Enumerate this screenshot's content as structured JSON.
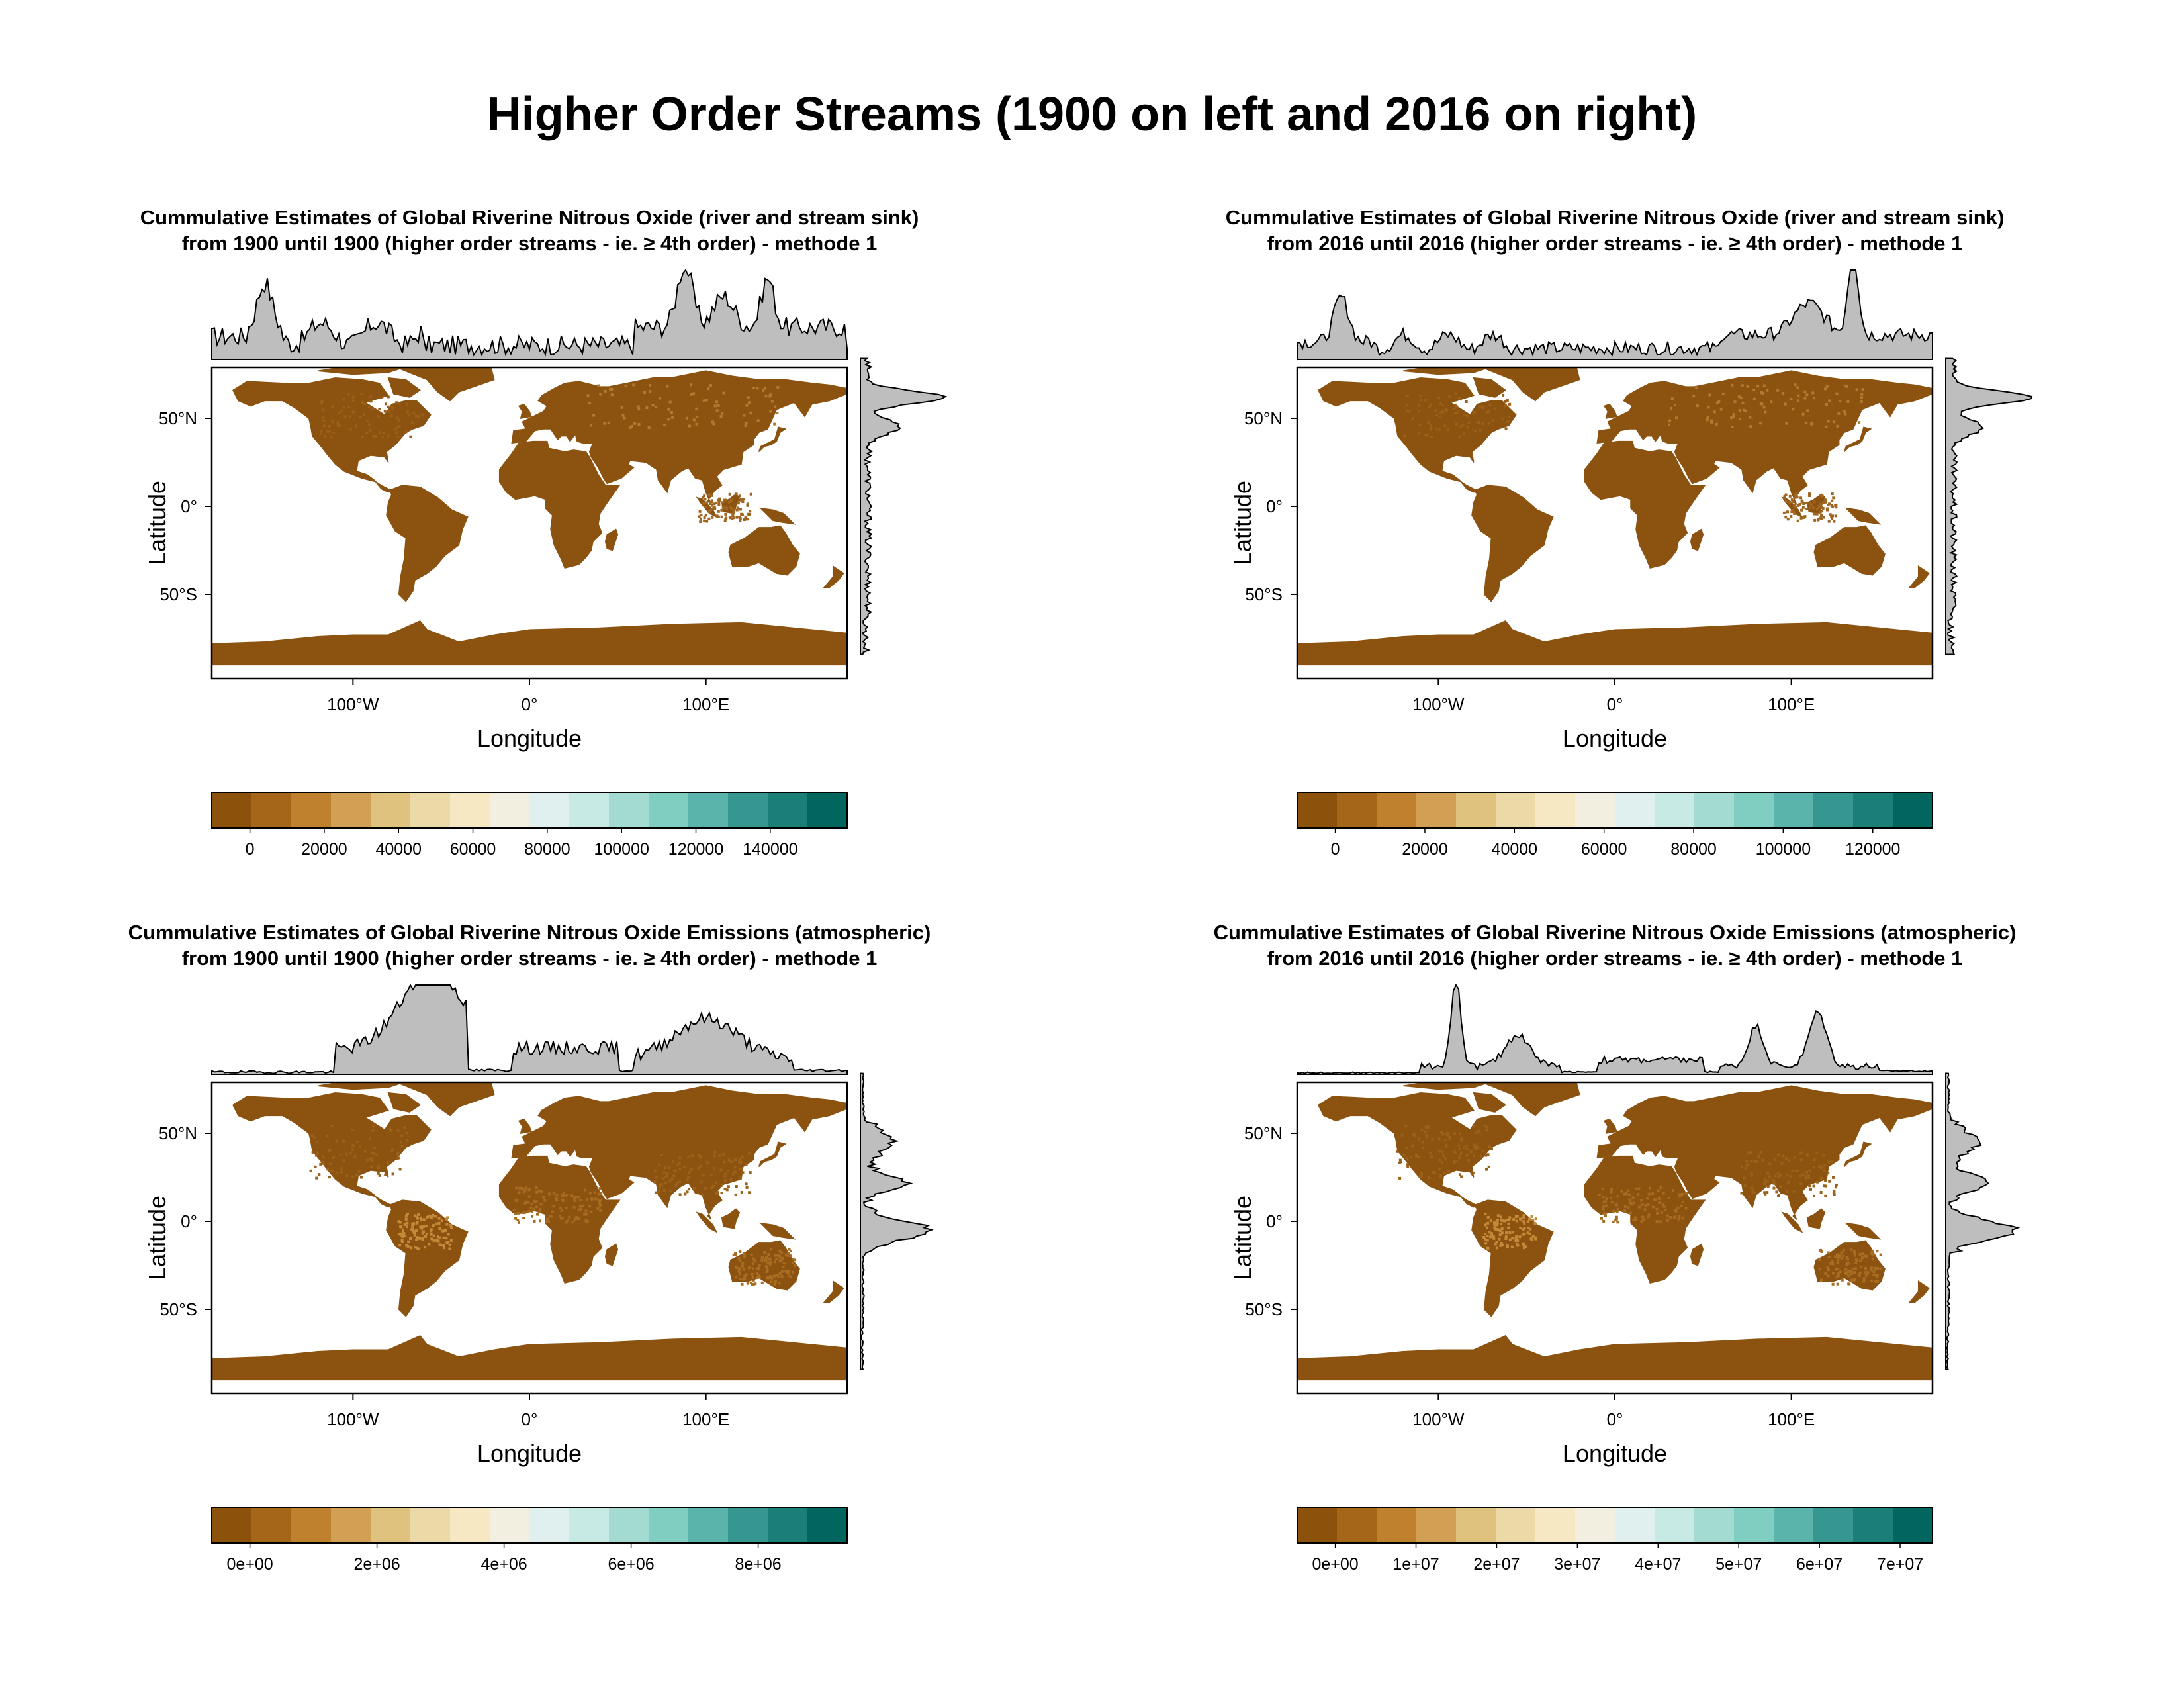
{
  "page_title": "Higher Order Streams (1900 on left and 2016 on right)",
  "axes": {
    "xlabel": "Longitude",
    "ylabel": "Latitude",
    "lon_ticks": [
      "100°W",
      "0°",
      "100°E"
    ],
    "lat_ticks": [
      "50°N",
      "0°",
      "50°S"
    ]
  },
  "colors": {
    "land": "#8c5310",
    "marginal_fill": "#bebebe",
    "scale": [
      "#8c510a",
      "#a6661a",
      "#bf812d",
      "#d1a054",
      "#dfc27d",
      "#ecd9a8",
      "#f6e8c3",
      "#f2efe0",
      "#e0f0ee",
      "#c7eae5",
      "#a3dbd2",
      "#80cdc1",
      "#5ab4ac",
      "#35978f",
      "#1a7f76",
      "#01665e"
    ]
  },
  "panels": [
    {
      "id": "sink-1900",
      "title_line1": "Cummulative Estimates of Global Riverine Nitrous Oxide (river and stream sink)",
      "title_line2": "from 1900 until 1900 (higher order streams - ie. ≥ 4th order) - methode 1",
      "legend_ticks": [
        "0",
        "20000",
        "40000",
        "60000",
        "80000",
        "100000",
        "120000",
        "140000"
      ]
    },
    {
      "id": "sink-2016",
      "title_line1": "Cummulative Estimates of Global Riverine Nitrous Oxide (river and stream sink)",
      "title_line2": "from 2016 until 2016 (higher order streams - ie. ≥ 4th order) - methode 1",
      "legend_ticks": [
        "0",
        "20000",
        "40000",
        "60000",
        "80000",
        "100000",
        "120000"
      ]
    },
    {
      "id": "emissions-1900",
      "title_line1": "Cummulative Estimates of Global Riverine Nitrous Oxide Emissions (atmospheric)",
      "title_line2": "from 1900 until 1900 (higher order streams - ie. ≥ 4th order) - methode 1",
      "legend_ticks": [
        "0e+00",
        "2e+06",
        "4e+06",
        "6e+06",
        "8e+06"
      ]
    },
    {
      "id": "emissions-2016",
      "title_line1": "Cummulative Estimates of Global Riverine Nitrous Oxide Emissions (atmospheric)",
      "title_line2": "from 2016 until 2016 (higher order streams - ie. ≥ 4th order) - methode 1",
      "legend_ticks": [
        "0e+00",
        "1e+07",
        "2e+07",
        "3e+07",
        "4e+07",
        "5e+07",
        "6e+07",
        "7e+07"
      ]
    }
  ]
}
